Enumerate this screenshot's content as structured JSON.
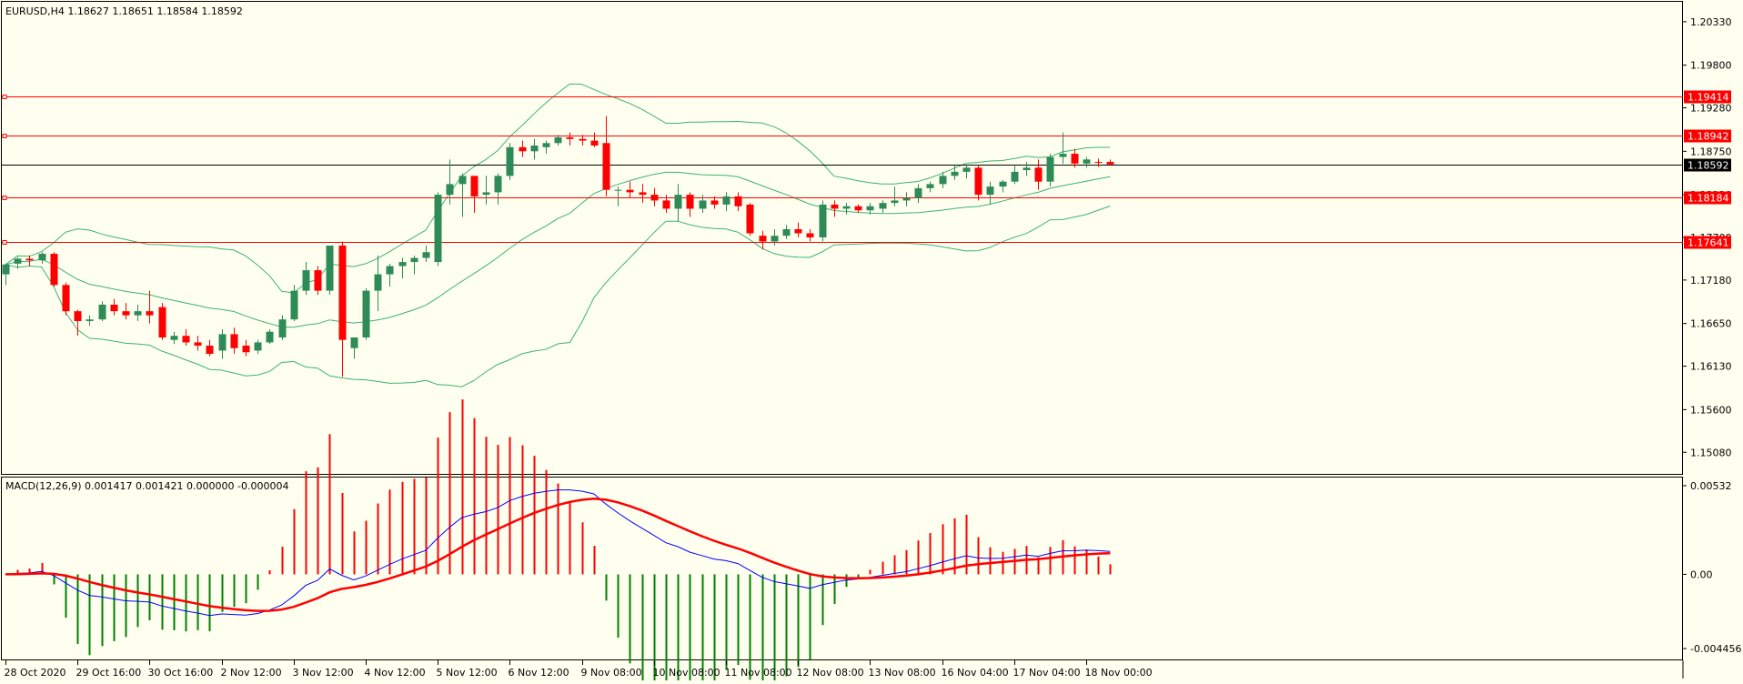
{
  "main": {
    "info_label": "EURUSD,H4  1.18627 1.18651 1.18584 1.18592"
  },
  "macd_panel": {
    "info_label": "MACD(12,26,9) 0.001417 0.001421 0.000000 -0.000004"
  },
  "colors": {
    "background": "#fffff0",
    "frame": "#000000",
    "bull_candle": "#2e8b57",
    "bear_candle": "#ff0000",
    "bollinger": "#3cb371",
    "hline": "#ff0000",
    "bid_line": "#000000",
    "macd_line": "#0000ff",
    "signal_line": "#ff0000",
    "histogram_pos": "#ff0000",
    "histogram_neg": "#008000"
  },
  "chart_data": [
    {
      "type": "candlestick",
      "symbol": "EURUSD",
      "timeframe": "H4",
      "ylim": [
        1.1485,
        1.2055
      ],
      "y_ticks": [
        "1.20330",
        "1.19800",
        "1.19280",
        "1.18750",
        "1.18220",
        "1.17700",
        "1.17180",
        "1.16650",
        "1.16130",
        "1.15600",
        "1.15080"
      ],
      "x_ticks": [
        {
          "index": 0,
          "label": "28 Oct 2020"
        },
        {
          "index": 6,
          "label": "29 Oct 16:00"
        },
        {
          "index": 12,
          "label": "30 Oct 16:00"
        },
        {
          "index": 18,
          "label": "2 Nov 12:00"
        },
        {
          "index": 24,
          "label": "3 Nov 12:00"
        },
        {
          "index": 30,
          "label": "4 Nov 12:00"
        },
        {
          "index": 36,
          "label": "5 Nov 12:00"
        },
        {
          "index": 42,
          "label": "6 Nov 12:00"
        },
        {
          "index": 48,
          "label": "9 Nov 08:00"
        },
        {
          "index": 54,
          "label": "10 Nov 08:00"
        },
        {
          "index": 60,
          "label": "11 Nov 08:00"
        },
        {
          "index": 66,
          "label": "12 Nov 08:00"
        },
        {
          "index": 72,
          "label": "13 Nov 08:00"
        },
        {
          "index": 78,
          "label": "16 Nov 04:00"
        },
        {
          "index": 84,
          "label": "17 Nov 04:00"
        },
        {
          "index": 90,
          "label": "18 Nov 00:00"
        }
      ],
      "horizontal_lines": [
        {
          "price": 1.19414,
          "label": "1.19414"
        },
        {
          "price": 1.18942,
          "label": "1.18942"
        },
        {
          "price": 1.18184,
          "label": "1.18184"
        },
        {
          "price": 1.17641,
          "label": "1.17641"
        }
      ],
      "current_price": {
        "price": 1.18592,
        "label": "1.18592"
      },
      "candles_ohlc": [
        [
          1.1725,
          1.1738,
          1.1712,
          1.1737
        ],
        [
          1.1738,
          1.1746,
          1.1732,
          1.1744
        ],
        [
          1.1744,
          1.1748,
          1.1735,
          1.1742
        ],
        [
          1.1742,
          1.1752,
          1.1738,
          1.175
        ],
        [
          1.175,
          1.1752,
          1.171,
          1.1712
        ],
        [
          1.1712,
          1.1715,
          1.1675,
          1.168
        ],
        [
          1.168,
          1.1682,
          1.165,
          1.1668
        ],
        [
          1.1668,
          1.1675,
          1.1662,
          1.167
        ],
        [
          1.167,
          1.1692,
          1.1668,
          1.1688
        ],
        [
          1.1688,
          1.1695,
          1.1675,
          1.168
        ],
        [
          1.168,
          1.169,
          1.167,
          1.1675
        ],
        [
          1.1675,
          1.1688,
          1.1668,
          1.168
        ],
        [
          1.168,
          1.1705,
          1.1665,
          1.1675
        ],
        [
          1.1685,
          1.169,
          1.1645,
          1.1648
        ],
        [
          1.1645,
          1.1655,
          1.164,
          1.165
        ],
        [
          1.165,
          1.1658,
          1.1638,
          1.1642
        ],
        [
          1.1642,
          1.165,
          1.1632,
          1.1638
        ],
        [
          1.1638,
          1.1645,
          1.1625,
          1.1628
        ],
        [
          1.1632,
          1.1658,
          1.1622,
          1.1652
        ],
        [
          1.1652,
          1.166,
          1.1628,
          1.1635
        ],
        [
          1.1638,
          1.1645,
          1.1625,
          1.163
        ],
        [
          1.1632,
          1.1645,
          1.1628,
          1.1642
        ],
        [
          1.1642,
          1.1658,
          1.164,
          1.1655
        ],
        [
          1.1648,
          1.1675,
          1.1645,
          1.167
        ],
        [
          1.167,
          1.1712,
          1.1668,
          1.1705
        ],
        [
          1.1705,
          1.174,
          1.17,
          1.173
        ],
        [
          1.173,
          1.1735,
          1.17,
          1.1705
        ],
        [
          1.1705,
          1.1755,
          1.17,
          1.176
        ],
        [
          1.176,
          1.1765,
          1.16,
          1.1645
        ],
        [
          1.1635,
          1.1648,
          1.1622,
          1.1648
        ],
        [
          1.1648,
          1.1708,
          1.1645,
          1.1705
        ],
        [
          1.1705,
          1.1748,
          1.168,
          1.1725
        ],
        [
          1.1725,
          1.1738,
          1.171,
          1.1735
        ],
        [
          1.1735,
          1.1745,
          1.172,
          1.174
        ],
        [
          1.174,
          1.1748,
          1.1725,
          1.1745
        ],
        [
          1.1745,
          1.176,
          1.174,
          1.1752
        ],
        [
          1.174,
          1.1825,
          1.1735,
          1.1822
        ],
        [
          1.1822,
          1.1865,
          1.181,
          1.1835
        ],
        [
          1.1835,
          1.1848,
          1.1795,
          1.1845
        ],
        [
          1.1845,
          1.1845,
          1.18,
          1.182
        ],
        [
          1.1822,
          1.1845,
          1.181,
          1.1825
        ],
        [
          1.1825,
          1.1848,
          1.181,
          1.1845
        ],
        [
          1.1845,
          1.1885,
          1.184,
          1.188
        ],
        [
          1.188,
          1.1888,
          1.1868,
          1.1875
        ],
        [
          1.1875,
          1.189,
          1.1865,
          1.1882
        ],
        [
          1.188,
          1.1888,
          1.1872,
          1.1885
        ],
        [
          1.1885,
          1.1895,
          1.1882,
          1.1892
        ],
        [
          1.1892,
          1.1898,
          1.1882,
          1.189
        ],
        [
          1.189,
          1.1895,
          1.1882,
          1.1888
        ],
        [
          1.1888,
          1.1898,
          1.188,
          1.1882
        ],
        [
          1.1885,
          1.1918,
          1.182,
          1.1828
        ],
        [
          1.1828,
          1.1832,
          1.1808,
          1.1828
        ],
        [
          1.1828,
          1.1838,
          1.1818,
          1.1825
        ],
        [
          1.1825,
          1.1835,
          1.1812,
          1.1822
        ],
        [
          1.1822,
          1.183,
          1.1808,
          1.1815
        ],
        [
          1.1815,
          1.1822,
          1.18,
          1.1805
        ],
        [
          1.1805,
          1.1835,
          1.179,
          1.1822
        ],
        [
          1.1822,
          1.1825,
          1.1795,
          1.1805
        ],
        [
          1.1805,
          1.1822,
          1.18,
          1.1815
        ],
        [
          1.1815,
          1.182,
          1.1805,
          1.181
        ],
        [
          1.181,
          1.1825,
          1.1802,
          1.182
        ],
        [
          1.182,
          1.1825,
          1.1802,
          1.1808
        ],
        [
          1.181,
          1.1812,
          1.1772,
          1.1775
        ],
        [
          1.1772,
          1.1778,
          1.1755,
          1.1765
        ],
        [
          1.1765,
          1.178,
          1.176,
          1.1772
        ],
        [
          1.1772,
          1.1785,
          1.1768,
          1.178
        ],
        [
          1.178,
          1.1788,
          1.177,
          1.1775
        ],
        [
          1.1775,
          1.178,
          1.1765,
          1.177
        ],
        [
          1.177,
          1.1815,
          1.1765,
          1.181
        ],
        [
          1.181,
          1.1815,
          1.1795,
          1.1805
        ],
        [
          1.1805,
          1.1812,
          1.1798,
          1.1808
        ],
        [
          1.1808,
          1.181,
          1.18,
          1.1803
        ],
        [
          1.1803,
          1.1812,
          1.1798,
          1.1808
        ],
        [
          1.1805,
          1.1815,
          1.18,
          1.1812
        ],
        [
          1.1812,
          1.1832,
          1.1808,
          1.1815
        ],
        [
          1.1815,
          1.1825,
          1.1808,
          1.1818
        ],
        [
          1.1818,
          1.1835,
          1.1812,
          1.183
        ],
        [
          1.183,
          1.1838,
          1.1825,
          1.1835
        ],
        [
          1.1835,
          1.185,
          1.183,
          1.1845
        ],
        [
          1.1845,
          1.1858,
          1.184,
          1.185
        ],
        [
          1.185,
          1.1858,
          1.1842,
          1.1855
        ],
        [
          1.1855,
          1.1858,
          1.1815,
          1.1822
        ],
        [
          1.1822,
          1.1838,
          1.181,
          1.1832
        ],
        [
          1.1832,
          1.184,
          1.1825,
          1.1838
        ],
        [
          1.1838,
          1.1858,
          1.1835,
          1.185
        ],
        [
          1.1852,
          1.1862,
          1.1845,
          1.1855
        ],
        [
          1.1855,
          1.1865,
          1.1828,
          1.1838
        ],
        [
          1.1838,
          1.1872,
          1.1832,
          1.1868
        ],
        [
          1.1868,
          1.1898,
          1.186,
          1.1872
        ],
        [
          1.1872,
          1.1878,
          1.1855,
          1.186
        ],
        [
          1.186,
          1.1868,
          1.1855,
          1.1865
        ],
        [
          1.1862,
          1.1866,
          1.1856,
          1.1861
        ],
        [
          1.1862,
          1.1865,
          1.1858,
          1.1859
        ]
      ]
    },
    {
      "type": "bar",
      "indicator": "MACD(12,26,9)",
      "ylim": [
        -0.005,
        0.0057
      ],
      "y_ticks": [
        "0.00532",
        "0.00",
        "-0.004456"
      ],
      "series": []
    }
  ]
}
